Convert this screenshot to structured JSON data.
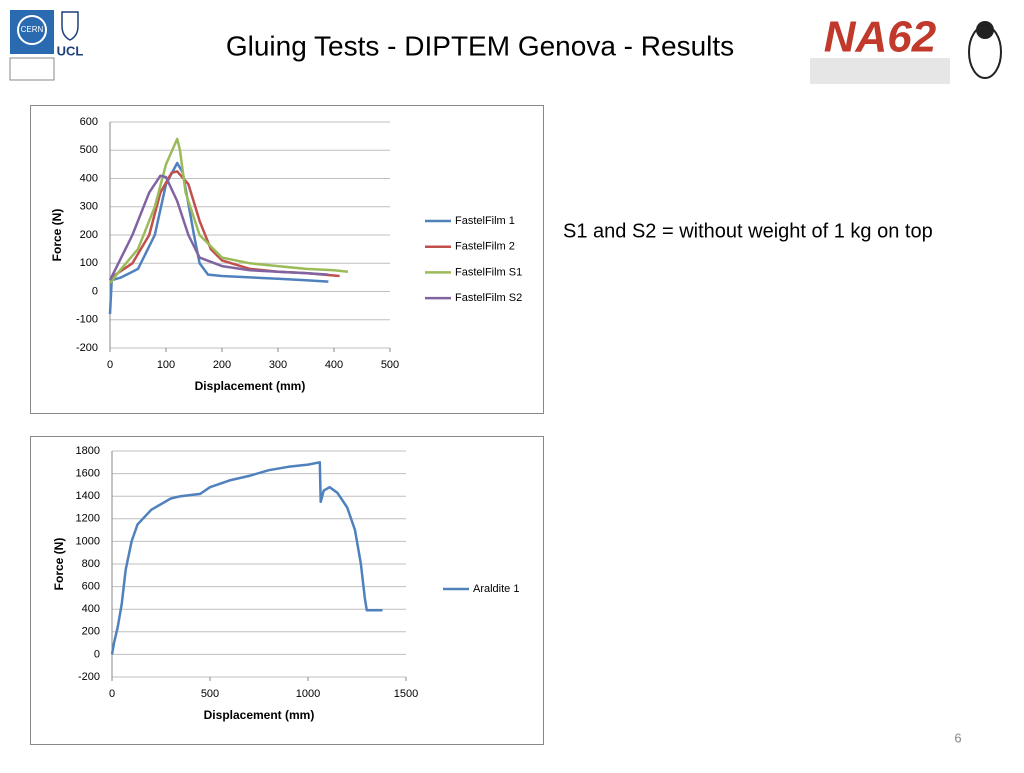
{
  "title": "Gluing Tests - DIPTEM Genova - Results",
  "note": "S1 and S2 = without weight of 1 kg on top",
  "page_number": "6",
  "logos": [
    "CERN",
    "UCL",
    "NA62"
  ],
  "chart_data": [
    {
      "type": "line",
      "xlabel": "Displacement (mm)",
      "ylabel": "Force (N)",
      "xlim": [
        0,
        500
      ],
      "xticks": [
        0,
        100,
        200,
        300,
        400,
        500
      ],
      "ylim": [
        -200,
        600
      ],
      "yticks": [
        -200,
        -100,
        0,
        100,
        200,
        300,
        400,
        500,
        600
      ],
      "grid": true,
      "series": [
        {
          "name": "FastelFilm 1",
          "color": "#4f81bd",
          "x": [
            0,
            3,
            20,
            50,
            80,
            100,
            120,
            130,
            150,
            160,
            175,
            200,
            250,
            300,
            350,
            390
          ],
          "values": [
            -80,
            40,
            50,
            80,
            200,
            380,
            455,
            420,
            200,
            100,
            60,
            55,
            50,
            45,
            40,
            35
          ]
        },
        {
          "name": "FastelFilm 2",
          "color": "#c0504d",
          "x": [
            0,
            10,
            40,
            70,
            90,
            110,
            120,
            140,
            160,
            180,
            200,
            250,
            300,
            350,
            410
          ],
          "values": [
            30,
            60,
            100,
            200,
            350,
            420,
            425,
            380,
            250,
            150,
            110,
            80,
            70,
            65,
            55
          ]
        },
        {
          "name": "FastelFilm S1",
          "color": "#9bbb59",
          "x": [
            0,
            20,
            50,
            80,
            100,
            120,
            125,
            135,
            160,
            200,
            250,
            300,
            350,
            400,
            425
          ],
          "values": [
            30,
            80,
            150,
            300,
            450,
            540,
            500,
            350,
            200,
            120,
            100,
            90,
            80,
            75,
            70
          ]
        },
        {
          "name": "FastelFilm S2",
          "color": "#8064a2",
          "x": [
            0,
            10,
            40,
            70,
            90,
            100,
            120,
            140,
            160,
            200,
            250,
            300,
            350,
            390
          ],
          "values": [
            40,
            80,
            200,
            350,
            410,
            405,
            320,
            200,
            120,
            90,
            75,
            70,
            65,
            60
          ]
        }
      ]
    },
    {
      "type": "line",
      "xlabel": "Displacement (mm)",
      "ylabel": "Force (N)",
      "xlim": [
        0,
        1500
      ],
      "xticks": [
        0,
        500,
        1000,
        1500
      ],
      "ylim": [
        -200,
        1800
      ],
      "yticks": [
        -200,
        0,
        200,
        400,
        600,
        800,
        1000,
        1200,
        1400,
        1600,
        1800
      ],
      "grid": true,
      "series": [
        {
          "name": "Araldite 1",
          "color": "#4f81bd",
          "x": [
            0,
            10,
            30,
            50,
            70,
            100,
            130,
            200,
            300,
            350,
            450,
            500,
            600,
            700,
            800,
            900,
            1000,
            1060,
            1065,
            1080,
            1110,
            1150,
            1200,
            1240,
            1270,
            1290,
            1300,
            1350,
            1380
          ],
          "values": [
            0,
            100,
            250,
            450,
            750,
            1000,
            1150,
            1280,
            1380,
            1400,
            1420,
            1480,
            1540,
            1580,
            1630,
            1660,
            1680,
            1700,
            1350,
            1450,
            1480,
            1430,
            1300,
            1100,
            800,
            500,
            390,
            390,
            390
          ]
        }
      ]
    }
  ]
}
